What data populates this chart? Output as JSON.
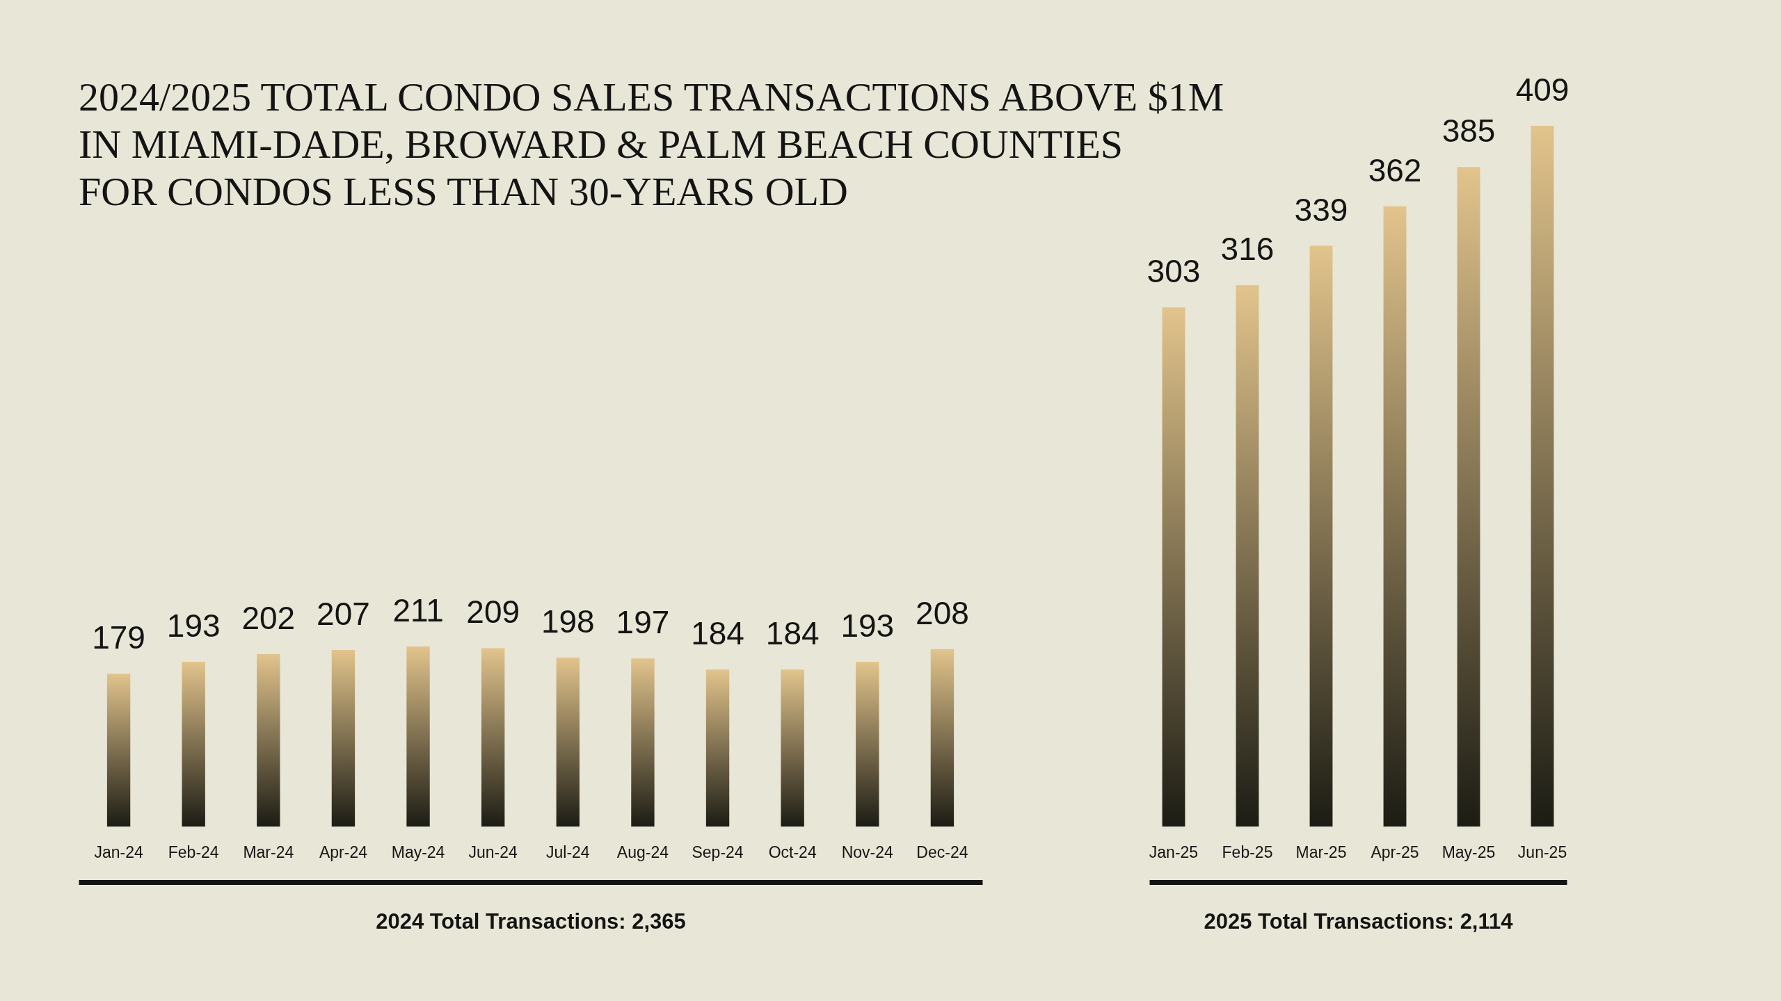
{
  "chart_data": [
    {
      "type": "bar",
      "title": "2024/2025 TOTAL CONDO SALES TRANSACTIONS ABOVE $1M\nIN MIAMI-DADE, BROWARD & PALM BEACH COUNTIES\nFOR CONDOS LESS THAN 30-YEARS OLD",
      "xlabel": "2024 Total Transactions: 2,365",
      "categories": [
        "Jan-24",
        "Feb-24",
        "Mar-24",
        "Apr-24",
        "May-24",
        "Jun-24",
        "Jul-24",
        "Aug-24",
        "Sep-24",
        "Oct-24",
        "Nov-24",
        "Dec-24"
      ],
      "values": [
        179,
        193,
        202,
        207,
        211,
        209,
        198,
        197,
        184,
        184,
        193,
        208
      ],
      "color": "#e2c48c",
      "data_labels": true
    },
    {
      "type": "bar",
      "xlabel": "2025 Total Transactions: 2,114",
      "categories": [
        "Jan-25",
        "Feb-25",
        "Mar-25",
        "Apr-25",
        "May-25",
        "Jun-25"
      ],
      "values": [
        303,
        316,
        339,
        362,
        385,
        409
      ],
      "color": "#e2c48c",
      "data_labels": true
    }
  ]
}
